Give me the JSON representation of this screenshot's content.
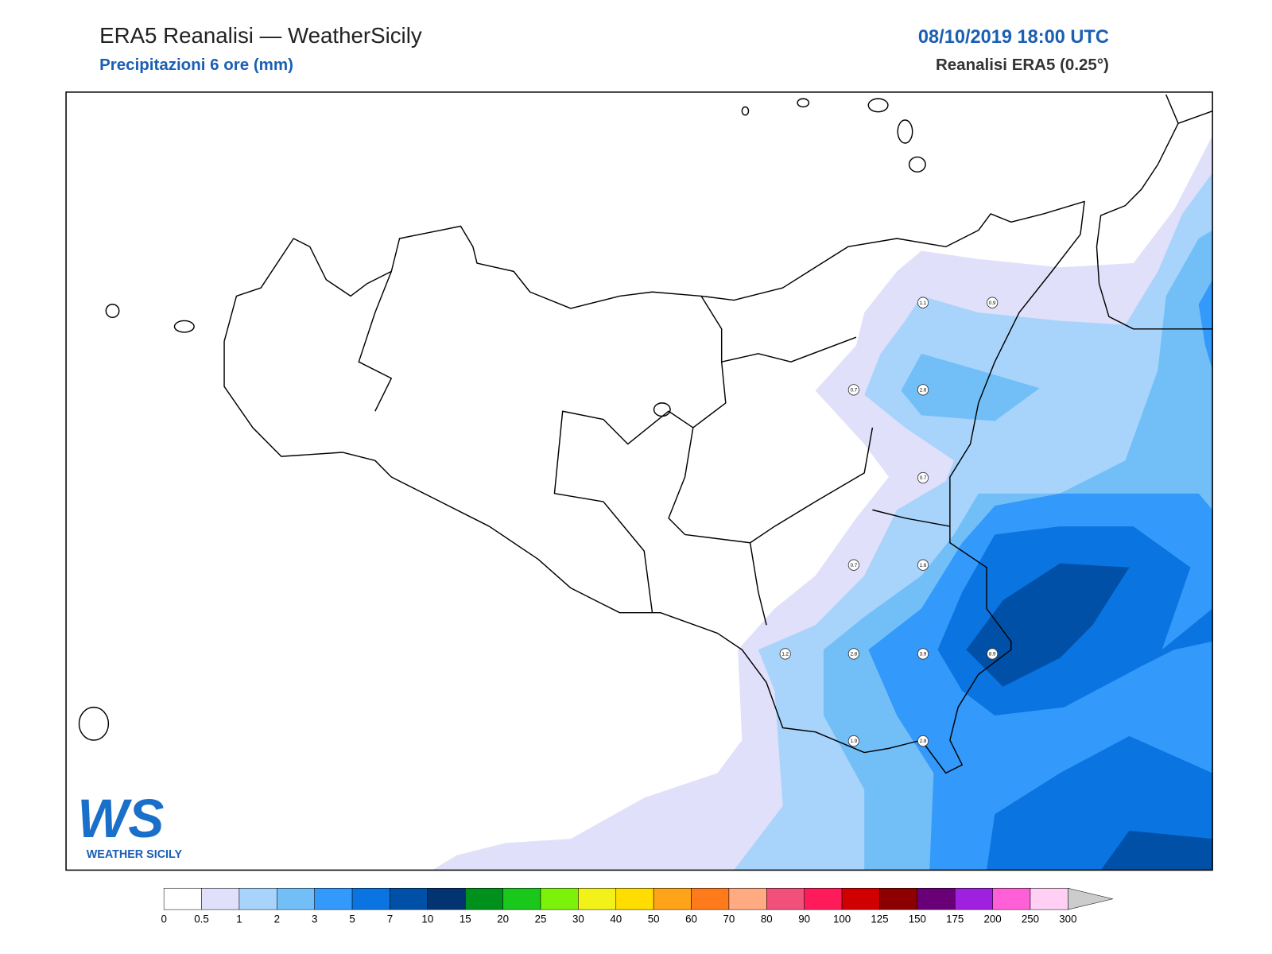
{
  "header": {
    "title": "ERA5 Reanalisi — WeatherSicily",
    "subtitle": "Precipitazioni 6 ore (mm)",
    "date": "08/10/2019 18:00 UTC",
    "source": "Reanalisi ERA5 (0.25°)"
  },
  "logo": {
    "mark": "WS",
    "text": "WEATHER SICILY"
  },
  "stations": [
    1.1,
    0.9,
    0.7,
    2.6,
    0.7,
    0.7,
    1.6,
    1.2,
    2.8,
    3.9,
    8.9,
    1.9,
    2.8
  ],
  "colorbar": {
    "levels": [
      0,
      0.5,
      1,
      2,
      3,
      5,
      7,
      10,
      15,
      20,
      25,
      30,
      40,
      50,
      60,
      70,
      80,
      90,
      100,
      125,
      150,
      175,
      200,
      250,
      300
    ],
    "colors": [
      "#ffffff",
      "#e0e0fa",
      "#a8d4fb",
      "#72bff8",
      "#3399fb",
      "#0a75e0",
      "#0050a8",
      "#013470",
      "#00901c",
      "#1ac81c",
      "#7cf20a",
      "#f2f21a",
      "#ffdd00",
      "#ffa31a",
      "#ff7a1a",
      "#ffaa80",
      "#f0507a",
      "#ff1a5a",
      "#d10000",
      "#8c0000",
      "#6a0078",
      "#a020e0",
      "#ff60d8",
      "#ffd0f4"
    ],
    "extend_color": "#cccccc"
  }
}
